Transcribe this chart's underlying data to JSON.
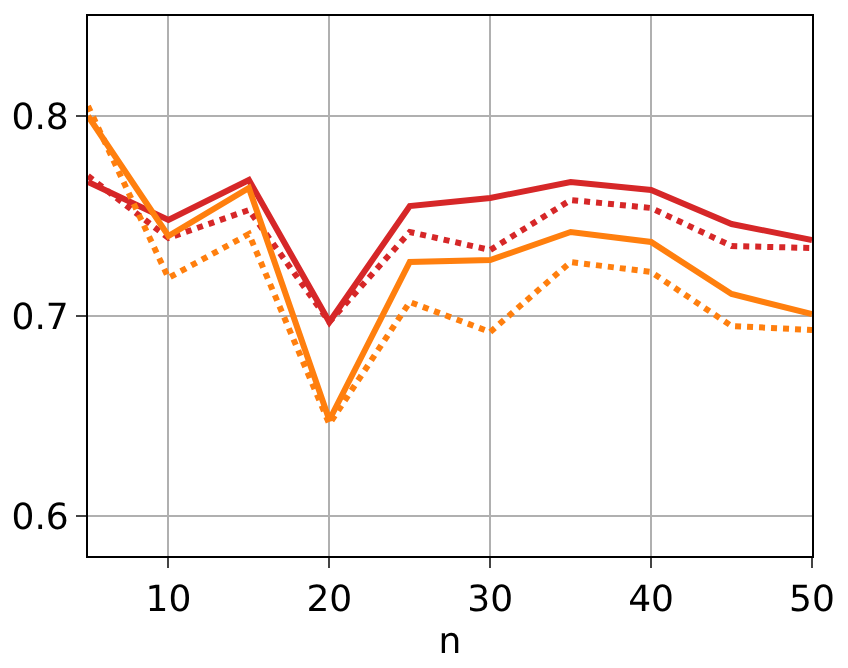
{
  "chart_data": {
    "type": "line",
    "xlabel": "n",
    "x": [
      5,
      10,
      15,
      20,
      25,
      30,
      35,
      40,
      45,
      50
    ],
    "series": [
      {
        "color": "#d62728",
        "line_style": "solid",
        "values": [
          0.767,
          0.748,
          0.768,
          0.697,
          0.755,
          0.759,
          0.767,
          0.763,
          0.746,
          0.738
        ]
      },
      {
        "color": "#d62728",
        "line_style": "dotted",
        "values": [
          0.77,
          0.739,
          0.753,
          0.697,
          0.742,
          0.733,
          0.758,
          0.754,
          0.735,
          0.734
        ]
      },
      {
        "color": "#ff7f0e",
        "line_style": "solid",
        "values": [
          0.8,
          0.74,
          0.764,
          0.648,
          0.727,
          0.728,
          0.742,
          0.737,
          0.711,
          0.701
        ]
      },
      {
        "color": "#ff7f0e",
        "line_style": "dotted",
        "values": [
          0.805,
          0.719,
          0.741,
          0.646,
          0.707,
          0.692,
          0.727,
          0.722,
          0.695,
          0.693
        ]
      }
    ],
    "xlim": [
      5,
      50
    ],
    "xticks": [
      10,
      20,
      30,
      40,
      50
    ],
    "ylim": [
      0.58,
      0.85
    ],
    "yticks": [
      0.6,
      0.7,
      0.8
    ],
    "grid": true,
    "marker": "none"
  }
}
